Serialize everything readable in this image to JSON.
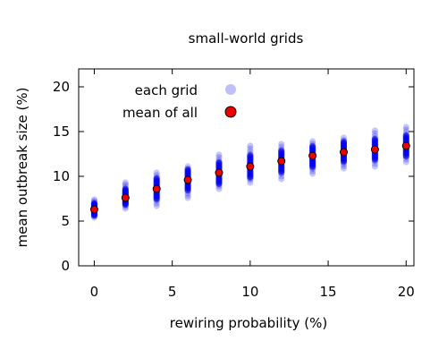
{
  "chart_data": {
    "type": "scatter",
    "title": "small-world grids",
    "xlabel": "rewiring probability (%)",
    "ylabel": "mean outbreak size (%)",
    "xlim": [
      -1,
      20.5
    ],
    "ylim": [
      0,
      22
    ],
    "xticks": [
      0,
      5,
      10,
      15,
      20
    ],
    "yticks": [
      0,
      5,
      10,
      15,
      20
    ],
    "legend_position": "top-left",
    "x": [
      0,
      2,
      4,
      6,
      8,
      10,
      12,
      14,
      16,
      18,
      20
    ],
    "series": [
      {
        "name": "each grid",
        "marker": "light blue translucent dots",
        "color": "#0000ee",
        "ranges": [
          [
            5.4,
            7.4
          ],
          [
            6.4,
            9.3
          ],
          [
            6.7,
            10.4
          ],
          [
            7.6,
            11.1
          ],
          [
            8.6,
            12.4
          ],
          [
            9.3,
            13.4
          ],
          [
            9.7,
            13.6
          ],
          [
            10.3,
            13.9
          ],
          [
            10.9,
            14.3
          ],
          [
            11.1,
            15.1
          ],
          [
            11.6,
            15.5
          ]
        ],
        "dense_ranges": [
          [
            5.6,
            7.0
          ],
          [
            6.8,
            8.6
          ],
          [
            7.4,
            9.8
          ],
          [
            8.4,
            10.8
          ],
          [
            9.1,
            11.6
          ],
          [
            9.8,
            12.4
          ],
          [
            10.4,
            12.9
          ],
          [
            11.0,
            13.4
          ],
          [
            11.6,
            13.9
          ],
          [
            11.8,
            14.2
          ],
          [
            12.2,
            14.6
          ]
        ]
      },
      {
        "name": "mean of all",
        "marker": "red dot with black outline",
        "color": "#ee0000",
        "values": [
          6.3,
          7.6,
          8.6,
          9.6,
          10.4,
          11.1,
          11.7,
          12.3,
          12.7,
          13.0,
          13.4
        ]
      }
    ]
  }
}
